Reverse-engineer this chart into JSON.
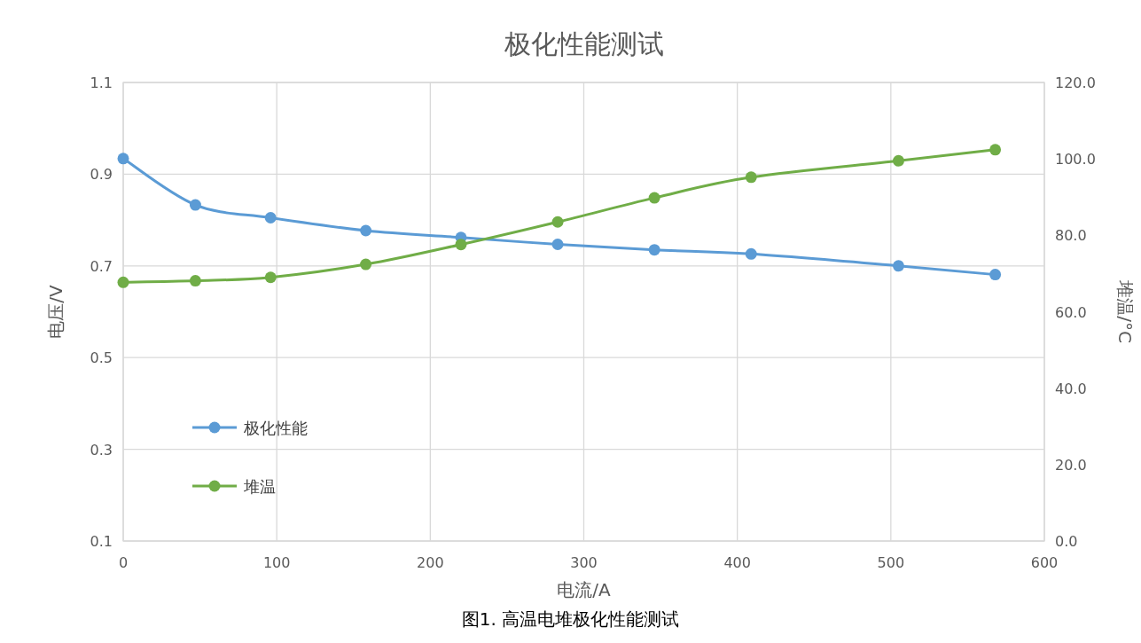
{
  "chart_data": {
    "type": "line",
    "title": "极化性能测试",
    "xlabel": "电流/A",
    "ylabel": "电压/V",
    "y2label": "堆温/°C",
    "annotations": [
      "图1. 高温电堆极化性能测试"
    ],
    "x": [
      0,
      47,
      96,
      158,
      220,
      283,
      346,
      409,
      505,
      568
    ],
    "series": [
      {
        "name": "极化性能",
        "color": "#5b9bd5",
        "values": [
          0.934,
          0.833,
          0.805,
          0.777,
          0.762,
          0.747,
          0.735,
          0.726,
          0.7,
          0.681
        ]
      },
      {
        "name": "堆温",
        "color": "#70ad47",
        "axis": "y2",
        "values": [
          67.7,
          68.1,
          69.0,
          72.4,
          77.6,
          83.5,
          89.8,
          95.2,
          99.5,
          102.4
        ]
      }
    ],
    "xlim": [
      0,
      600
    ],
    "xticks": [
      0,
      100,
      200,
      300,
      400,
      500,
      600
    ],
    "ylim": [
      0.1,
      1.1
    ],
    "yticks": [
      0.1,
      0.3,
      0.5,
      0.7,
      0.9,
      1.1
    ],
    "y2lim": [
      0,
      120
    ],
    "y2ticks": [
      {
        "value": 0,
        "label": "0.0"
      },
      {
        "value": 20,
        "label": "20.0"
      },
      {
        "value": 40,
        "label": "40.0"
      },
      {
        "value": 60,
        "label": "60.0"
      },
      {
        "value": 80,
        "label": "80.0"
      },
      {
        "value": 100,
        "label": "100.0"
      },
      {
        "value": 120,
        "label": "120.0"
      }
    ],
    "grid": true,
    "legend": "bottom left",
    "marker": "circle",
    "line_style": "solid"
  }
}
